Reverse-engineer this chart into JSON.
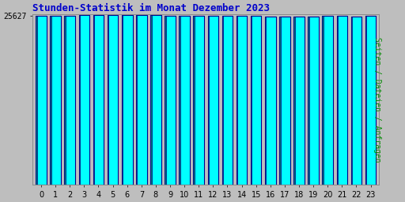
{
  "title": "Stunden-Statistik im Monat Dezember 2023",
  "ylabel": "Seiten / Dateien / Anfragen",
  "xlabel_tick_labels": [
    "0",
    "1",
    "2",
    "3",
    "4",
    "5",
    "6",
    "7",
    "8",
    "9",
    "10",
    "11",
    "12",
    "13",
    "14",
    "15",
    "16",
    "17",
    "18",
    "19",
    "20",
    "21",
    "22",
    "23"
  ],
  "ytick_value": 25627,
  "ytick_label": "25627",
  "values": [
    25627,
    25620,
    25700,
    25720,
    25730,
    25780,
    25800,
    25780,
    25790,
    25660,
    25620,
    25625,
    25625,
    25605,
    25605,
    25610,
    25560,
    25545,
    25575,
    25575,
    25680,
    25615,
    25580,
    25615
  ],
  "bar_color": "#00FFFF",
  "bar_edge_color": "#00008B",
  "bar_left_color": "#007777",
  "background_color": "#BEBEBE",
  "plot_bg_color": "#BEBEBE",
  "title_color": "#0000CC",
  "ylabel_color": "#008800",
  "ytick_color": "#000000",
  "xtick_color": "#000000",
  "ymin": 25400,
  "ymax": 25850,
  "title_fontsize": 9,
  "ylabel_fontsize": 7,
  "tick_fontsize": 7,
  "bar_width": 0.75
}
